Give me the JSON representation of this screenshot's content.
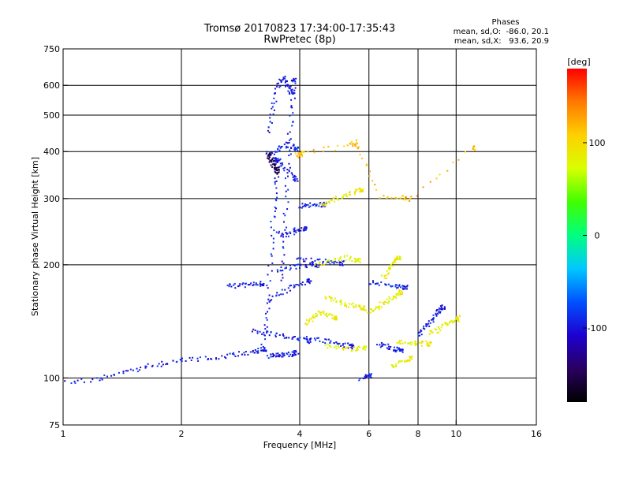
{
  "chart_data": {
    "type": "scatter",
    "title": "Tromsø 20170823 17:34:00-17:35:43",
    "subtitle": "RwPretec (8p)",
    "xlabel": "Frequency [MHz]",
    "ylabel": "Stationary phase Virtual Height [km]",
    "x_scale": "log",
    "y_scale": "log",
    "xlim": [
      1,
      16
    ],
    "ylim": [
      75,
      750
    ],
    "x_ticks": [
      1,
      2,
      4,
      6,
      8,
      10,
      16
    ],
    "x_tick_labels": [
      "1",
      "2",
      "4",
      "6",
      "8",
      "10",
      "16"
    ],
    "x_gridlines": [
      2,
      4,
      6,
      8,
      10
    ],
    "y_ticks": [
      75,
      100,
      200,
      300,
      400,
      500,
      600,
      750
    ],
    "y_tick_labels": [
      "75",
      "100",
      "200",
      "300",
      "400",
      "500",
      "600",
      "750"
    ],
    "y_gridlines": [
      100,
      200,
      300,
      400,
      500,
      600
    ],
    "grid": true,
    "colorbar": {
      "label": "[deg]",
      "range": [
        -180,
        180
      ],
      "ticks": [
        100,
        0,
        -100
      ],
      "tick_labels": [
        "100",
        "0",
        "-100"
      ],
      "colors": [
        "#000000",
        "#2a0060",
        "#1e00d0",
        "#0050ff",
        "#00c8ff",
        "#00ff80",
        "#40ff00",
        "#d8ff00",
        "#ffd000",
        "#ff7a00",
        "#ff0000"
      ]
    },
    "stats": {
      "header": "Phases",
      "line1": "mean, sd,O:  -86.0, 20.1",
      "line2": "mean, sd,X:   93.6, 20.9"
    },
    "o_mode_color": "#1a3cff",
    "x_mode_color": "#ffc400",
    "series": [
      {
        "phase_deg": -95,
        "traces": [
          {
            "x": [
              1.0,
              1.2,
              1.4,
              1.6,
              1.8,
              2.0,
              2.3,
              2.6,
              2.9,
              3.1,
              3.25
            ],
            "y": [
              97,
              100,
              103,
              107,
              110,
              112,
              113,
              115,
              117,
              118,
              120
            ]
          },
          {
            "x": [
              3.3,
              3.45,
              3.6,
              3.75,
              3.9
            ],
            "y": [
              115,
              115,
              116,
              116,
              117
            ]
          },
          {
            "x": [
              3.2,
              3.3,
              3.35,
              3.4,
              3.45,
              3.5
            ],
            "y": [
              125,
              150,
              200,
              260,
              320,
              380
            ]
          },
          {
            "x": [
              3.6,
              3.65,
              3.7,
              3.75,
              3.8,
              3.85
            ],
            "y": [
              180,
              240,
              320,
              420,
              520,
              620
            ]
          },
          {
            "x": [
              3.3,
              3.4,
              3.5,
              3.6,
              3.7,
              3.8
            ],
            "y": [
              450,
              520,
              600,
              630,
              610,
              580
            ]
          },
          {
            "x": [
              3.35,
              3.5,
              3.7,
              3.9
            ],
            "y": [
              390,
              410,
              420,
              410
            ]
          },
          {
            "x": [
              3.3,
              3.5,
              3.7,
              3.9
            ],
            "y": [
              400,
              385,
              360,
              340
            ]
          },
          {
            "x": [
              3.5,
              3.7,
              3.9,
              4.1
            ],
            "y": [
              245,
              240,
              248,
              250
            ]
          },
          {
            "x": [
              3.3,
              3.6,
              3.9,
              4.2
            ],
            "y": [
              160,
              170,
              178,
              182
            ]
          },
          {
            "x": [
              3.5,
              3.8,
              4.1,
              4.4
            ],
            "y": [
              195,
              198,
              200,
              200
            ]
          },
          {
            "x": [
              2.6,
              2.8,
              3.0,
              3.2
            ],
            "y": [
              176,
              177,
              178,
              179
            ]
          },
          {
            "x": [
              4.0,
              4.2,
              4.4,
              4.6
            ],
            "y": [
              288,
              290,
              292,
              290
            ]
          },
          {
            "x": [
              3.0,
              3.3,
              3.6,
              3.9,
              4.2
            ],
            "y": [
              134,
              132,
              130,
              128,
              126
            ]
          },
          {
            "x": [
              3.9,
              4.3,
              4.7,
              5.1
            ],
            "y": [
              208,
              206,
              204,
              203
            ]
          },
          {
            "x": [
              4.2,
              4.6,
              5.0,
              5.4
            ],
            "y": [
              128,
              126,
              124,
              122
            ]
          },
          {
            "x": [
              6.3,
              6.6,
              6.9,
              7.2
            ],
            "y": [
              123,
              122,
              120,
              119
            ]
          },
          {
            "x": [
              8.0,
              8.3,
              8.6,
              8.9,
              9.2
            ],
            "y": [
              130,
              138,
              142,
              150,
              155
            ]
          },
          {
            "x": [
              6.0,
              6.5,
              7.0,
              7.4
            ],
            "y": [
              180,
              178,
              176,
              175
            ]
          },
          {
            "x": [
              5.7,
              6.0
            ],
            "y": [
              100,
              102
            ]
          }
        ]
      },
      {
        "phase_deg": 85,
        "traces": [
          {
            "x": [
              4.5,
              4.8,
              5.1,
              5.4,
              5.7
            ],
            "y": [
              290,
              298,
              305,
              312,
              318
            ]
          },
          {
            "x": [
              4.4,
              4.8,
              5.2,
              5.6
            ],
            "y": [
              200,
              206,
              210,
              206
            ]
          },
          {
            "x": [
              4.6,
              4.9,
              5.2,
              5.5,
              5.8
            ],
            "y": [
              165,
              162,
              158,
              156,
              154
            ]
          },
          {
            "x": [
              4.1,
              4.3,
              4.5,
              4.7,
              4.9
            ],
            "y": [
              140,
              145,
              150,
              148,
              145
            ]
          },
          {
            "x": [
              4.6,
              5.0,
              5.4,
              5.8
            ],
            "y": [
              122,
              121,
              120,
              121
            ]
          },
          {
            "x": [
              6.0,
              6.3,
              6.6,
              6.9,
              7.2
            ],
            "y": [
              150,
              155,
              160,
              165,
              170
            ]
          },
          {
            "x": [
              6.5,
              6.7,
              6.9,
              7.1
            ],
            "y": [
              185,
              195,
              205,
              210
            ]
          },
          {
            "x": [
              7.0,
              7.5,
              8.0,
              8.5
            ],
            "y": [
              125,
              125,
              124,
              124
            ]
          },
          {
            "x": [
              8.6,
              9.0,
              9.4,
              9.8,
              10.1
            ],
            "y": [
              132,
              135,
              140,
              142,
              145
            ]
          },
          {
            "x": [
              6.8,
              7.2,
              7.6
            ],
            "y": [
              107,
              110,
              113
            ]
          }
        ]
      },
      {
        "phase_deg": 115,
        "traces": [
          {
            "x": [
              3.9,
              4.0,
              4.05,
              5.3,
              5.5,
              5.6,
              6.4,
              7.3,
              7.6,
              11.0
            ],
            "y": [
              395,
              390,
              400,
              415,
              425,
              410,
              305,
              305,
              300,
              410
            ]
          }
        ]
      },
      {
        "phase_deg": -150,
        "traces": [
          {
            "x": [
              3.3,
              3.35,
              3.4,
              3.45,
              3.5
            ],
            "y": [
              395,
              385,
              375,
              365,
              355
            ]
          }
        ]
      }
    ]
  }
}
